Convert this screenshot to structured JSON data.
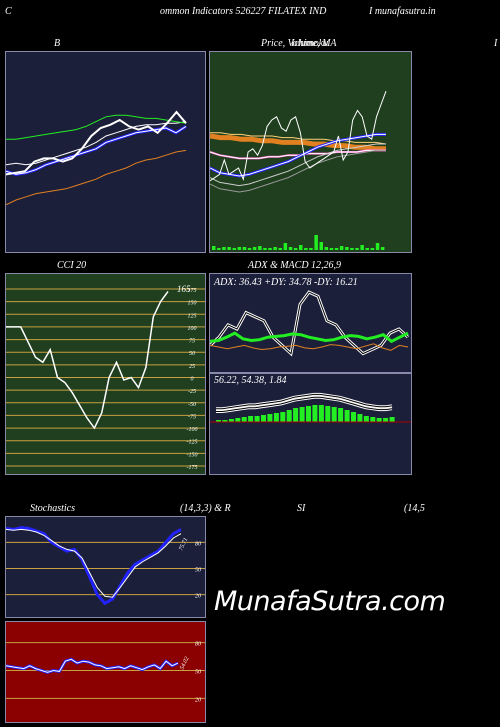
{
  "header": {
    "left_c": "C",
    "title": "ommon  Indicators 526227 FILATEX  IND",
    "site": "I munafasutra.in"
  },
  "panels": {
    "bb_label": "B",
    "price_label": "Price,  Volume,  MA",
    "price_label_overlap": "Ichimoku",
    "right_edge_label": "I",
    "cci_label": "CCI 20",
    "adx_macd_label": "ADX  & MACD 12,26,9",
    "adx_values": "ADX: 36.43  +DY: 34.78  -DY: 16.21",
    "macd_values": "56.22,  54.38,  1.84",
    "cci_value": "165",
    "stoch_label": "Stochastics",
    "stoch_params": "(14,3,3) & R",
    "rsi_label": "SI",
    "rsi_params": "(14,5",
    "stoch_value": "75.71",
    "rsi_value": "54.02"
  },
  "colors": {
    "panel_navy": "#1c1f3a",
    "panel_green": "#1f3f1f",
    "panel_red": "#8b0000",
    "grid_line": "#c8a040",
    "blue": "#2222ff",
    "bright_green": "#22ee22",
    "orange": "#e08020"
  },
  "chart_data": [
    {
      "type": "line",
      "name": "bollinger-bands",
      "series": [
        {
          "values": [
            38,
            36,
            37,
            39,
            42,
            44,
            46,
            48,
            50,
            52,
            56,
            58,
            60,
            62,
            63,
            64,
            65,
            62,
            66
          ]
        },
        {
          "values": [
            42,
            43,
            42,
            43,
            45,
            47,
            49,
            51,
            53,
            56,
            60,
            62,
            64,
            66,
            67,
            67,
            68,
            68,
            69
          ]
        },
        {
          "values": [
            58,
            58,
            59,
            60,
            61,
            62,
            63,
            64,
            66,
            69,
            72,
            73,
            73,
            72,
            71,
            71,
            70,
            69,
            68
          ]
        },
        {
          "values": [
            17,
            20,
            22,
            24,
            25,
            26,
            27,
            29,
            31,
            33,
            36,
            38,
            40,
            43,
            45,
            46,
            48,
            50,
            51
          ]
        },
        {
          "values": [
            36,
            37,
            38,
            44,
            46,
            46,
            44,
            46,
            52,
            60,
            65,
            67,
            70,
            66,
            64,
            66,
            62,
            68,
            75,
            68
          ]
        }
      ]
    },
    {
      "type": "line",
      "name": "price-volume-ma",
      "series": [
        {
          "values": [
            60,
            59,
            59,
            58,
            58,
            57,
            57,
            56,
            56,
            56,
            55,
            55,
            54,
            54,
            53,
            53,
            52,
            52
          ]
        },
        {
          "values": [
            62,
            62,
            61,
            61,
            60,
            60,
            60,
            59,
            59,
            58,
            58,
            58,
            57,
            57,
            56,
            56,
            56,
            55
          ]
        },
        {
          "values": [
            40,
            37,
            36,
            35,
            36,
            38,
            40,
            42,
            44,
            47,
            50,
            53,
            55,
            57,
            58,
            59,
            60,
            61,
            61
          ]
        },
        {
          "values": [
            50,
            48,
            47,
            46,
            46,
            46,
            47,
            47,
            48,
            48,
            49,
            49,
            49,
            50,
            50,
            50,
            51,
            51,
            51
          ]
        },
        {
          "values": [
            32,
            34,
            36,
            45,
            36,
            38,
            40,
            33,
            50,
            52,
            48,
            54,
            66,
            70,
            72,
            65,
            63,
            70,
            72,
            62,
            44,
            40,
            42,
            44,
            46,
            48,
            50,
            60,
            45,
            50,
            70,
            76,
            72,
            60,
            58,
            72,
            80,
            88
          ]
        }
      ],
      "volume": [
        4,
        2,
        3,
        3,
        2,
        3,
        3,
        2,
        3,
        4,
        2,
        2,
        3,
        2,
        7,
        3,
        2,
        5,
        2,
        2,
        15,
        8,
        3,
        2,
        2,
        4,
        3,
        2,
        2,
        5,
        2,
        2,
        7,
        3
      ]
    },
    {
      "type": "line",
      "name": "cci-20",
      "ylim": [
        -175,
        175
      ],
      "ticks": [
        175,
        150,
        125,
        100,
        75,
        50,
        25,
        0,
        -25,
        -50,
        -75,
        -100,
        -125,
        -150,
        -175
      ],
      "values": [
        100,
        100,
        100,
        70,
        40,
        30,
        55,
        0,
        -10,
        -30,
        -55,
        -80,
        -100,
        -70,
        0,
        30,
        -5,
        0,
        -20,
        20,
        120,
        150,
        170
      ]
    },
    {
      "type": "line",
      "name": "adx",
      "series": [
        {
          "values": [
            35,
            36,
            40,
            45,
            38,
            36,
            37,
            40,
            41,
            42,
            44,
            43,
            40,
            38,
            36,
            37,
            40,
            42,
            41,
            38,
            40,
            43,
            35,
            40,
            45
          ]
        },
        {
          "values": [
            30,
            28,
            26,
            28,
            30,
            27,
            25,
            26,
            28,
            29,
            30,
            27,
            26,
            28,
            31,
            30,
            28,
            26,
            29,
            32,
            27,
            24,
            30,
            28
          ]
        },
        {
          "values": [
            30,
            40,
            55,
            50,
            70,
            65,
            60,
            40,
            30,
            20,
            80,
            95,
            90,
            60,
            55,
            40,
            30,
            20,
            25,
            30,
            45,
            50,
            40
          ]
        }
      ]
    },
    {
      "type": "area",
      "name": "macd",
      "values": [
        2,
        2,
        3,
        4,
        5,
        6,
        6,
        7,
        8,
        9,
        10,
        12,
        14,
        15,
        16,
        17,
        17,
        16,
        15,
        14,
        12,
        10,
        8,
        6,
        5,
        4,
        4,
        5
      ]
    },
    {
      "type": "line",
      "name": "stochastics",
      "ylim": [
        0,
        100
      ],
      "ticks": [
        80,
        50,
        20
      ],
      "series": [
        {
          "values": [
            96,
            95,
            97,
            96,
            93,
            90,
            80,
            75,
            70,
            72,
            60,
            40,
            20,
            10,
            15,
            30,
            45,
            55,
            60,
            65,
            70,
            80,
            90,
            95
          ]
        },
        {
          "values": [
            95,
            94,
            95,
            94,
            92,
            88,
            82,
            76,
            72,
            70,
            62,
            45,
            28,
            18,
            17,
            28,
            40,
            52,
            58,
            63,
            68,
            76,
            85,
            90
          ]
        }
      ]
    },
    {
      "type": "line",
      "name": "rsi",
      "ylim": [
        0,
        100
      ],
      "ticks": [
        80,
        50,
        20
      ],
      "values": [
        55,
        54,
        53,
        52,
        55,
        52,
        50,
        48,
        50,
        49,
        60,
        62,
        58,
        60,
        59,
        56,
        55,
        52,
        53,
        54,
        52,
        55,
        53,
        51,
        54,
        56,
        52,
        60,
        55,
        58
      ]
    }
  ]
}
